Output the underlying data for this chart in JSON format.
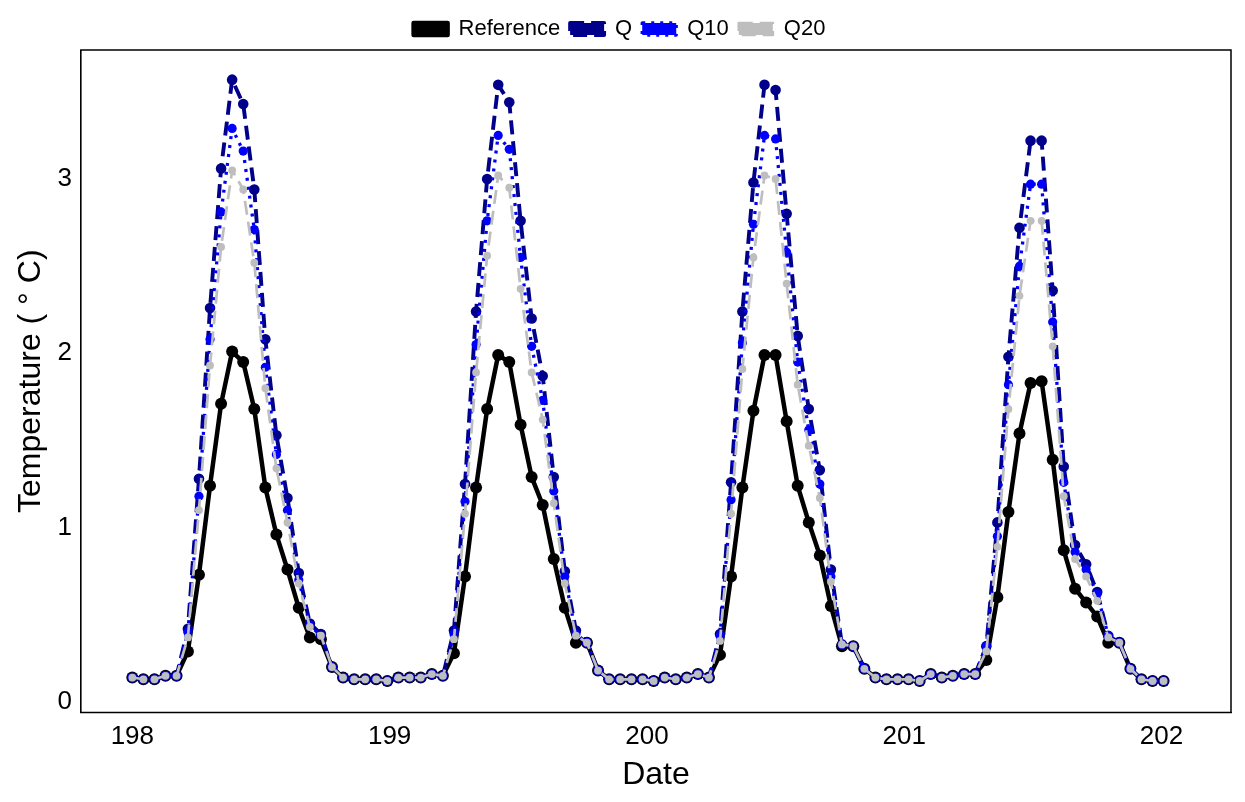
{
  "chart_data": {
    "type": "line",
    "xlabel": "Date",
    "ylabel": "Temperature ( ° C)",
    "legend": "top",
    "grid": false,
    "marker": "circle",
    "xlim": [
      197.8,
      202.27
    ],
    "ylim": [
      -0.06,
      3.74
    ],
    "xticks": [
      198,
      199,
      200,
      201,
      202
    ],
    "yticks": [
      0,
      1,
      2,
      3
    ],
    "x": [
      198.0,
      198.043,
      198.086,
      198.129,
      198.172,
      198.216,
      198.259,
      198.302,
      198.345,
      198.388,
      198.431,
      198.474,
      198.517,
      198.56,
      198.603,
      198.647,
      198.69,
      198.733,
      198.776,
      198.819,
      198.862,
      198.905,
      198.948,
      198.991,
      199.034,
      199.078,
      199.121,
      199.164,
      199.207,
      199.25,
      199.293,
      199.336,
      199.379,
      199.422,
      199.465,
      199.509,
      199.552,
      199.595,
      199.638,
      199.681,
      199.724,
      199.767,
      199.81,
      199.853,
      199.896,
      199.94,
      199.983,
      200.026,
      200.069,
      200.112,
      200.155,
      200.198,
      200.241,
      200.284,
      200.327,
      200.371,
      200.414,
      200.457,
      200.5,
      200.543,
      200.586,
      200.629,
      200.672,
      200.715,
      200.758,
      200.802,
      200.845,
      200.888,
      200.931,
      200.974,
      201.017,
      201.06,
      201.103,
      201.146,
      201.189,
      201.233,
      201.276,
      201.319,
      201.362,
      201.405,
      201.448,
      201.491,
      201.534,
      201.577,
      201.62,
      201.664,
      201.707,
      201.75,
      201.793,
      201.836,
      201.879,
      201.922,
      201.965,
      202.008
    ],
    "series": [
      {
        "name": "Reference",
        "color": "#000000",
        "line_style": "solid",
        "values": [
          0.14,
          0.13,
          0.13,
          0.15,
          0.15,
          0.29,
          0.73,
          1.24,
          1.71,
          2.01,
          1.95,
          1.68,
          1.23,
          0.96,
          0.76,
          0.54,
          0.37,
          0.36,
          0.2,
          0.14,
          0.13,
          0.13,
          0.13,
          0.12,
          0.14,
          0.14,
          0.14,
          0.16,
          0.15,
          0.28,
          0.72,
          1.23,
          1.68,
          1.99,
          1.95,
          1.59,
          1.29,
          1.13,
          0.82,
          0.54,
          0.34,
          0.34,
          0.18,
          0.13,
          0.13,
          0.13,
          0.13,
          0.12,
          0.14,
          0.13,
          0.14,
          0.16,
          0.14,
          0.27,
          0.72,
          1.23,
          1.67,
          1.99,
          1.99,
          1.61,
          1.24,
          1.03,
          0.84,
          0.55,
          0.32,
          0.32,
          0.19,
          0.14,
          0.13,
          0.13,
          0.13,
          0.12,
          0.16,
          0.14,
          0.15,
          0.16,
          0.16,
          0.24,
          0.6,
          1.09,
          1.54,
          1.83,
          1.84,
          1.39,
          0.87,
          0.65,
          0.57,
          0.49,
          0.34,
          0.34,
          0.19,
          0.13,
          0.12,
          0.12
        ]
      },
      {
        "name": "Q",
        "color": "#00008b",
        "line_style": "dashed",
        "values": [
          0.14,
          0.13,
          0.13,
          0.15,
          0.15,
          0.42,
          1.28,
          2.26,
          3.06,
          3.57,
          3.43,
          2.94,
          2.08,
          1.53,
          1.17,
          0.74,
          0.45,
          0.39,
          0.2,
          0.14,
          0.13,
          0.13,
          0.13,
          0.12,
          0.14,
          0.14,
          0.14,
          0.16,
          0.15,
          0.41,
          1.25,
          2.24,
          3.0,
          3.54,
          3.44,
          2.76,
          2.2,
          1.87,
          1.29,
          0.75,
          0.41,
          0.34,
          0.18,
          0.13,
          0.13,
          0.13,
          0.13,
          0.12,
          0.14,
          0.13,
          0.14,
          0.16,
          0.14,
          0.39,
          1.26,
          2.24,
          2.98,
          3.54,
          3.51,
          2.8,
          2.1,
          1.68,
          1.33,
          0.76,
          0.33,
          0.32,
          0.19,
          0.14,
          0.13,
          0.13,
          0.13,
          0.12,
          0.16,
          0.14,
          0.15,
          0.16,
          0.16,
          0.32,
          1.03,
          1.98,
          2.72,
          3.22,
          3.22,
          2.36,
          1.35,
          0.9,
          0.79,
          0.63,
          0.38,
          0.34,
          0.19,
          0.13,
          0.12,
          0.12
        ]
      },
      {
        "name": "Q10",
        "color": "#0000ff",
        "line_style": "dotted",
        "values": [
          0.14,
          0.13,
          0.13,
          0.15,
          0.15,
          0.4,
          1.18,
          2.08,
          2.81,
          3.29,
          3.16,
          2.71,
          1.92,
          1.42,
          1.1,
          0.7,
          0.44,
          0.38,
          0.2,
          0.14,
          0.13,
          0.13,
          0.13,
          0.12,
          0.14,
          0.14,
          0.14,
          0.16,
          0.15,
          0.39,
          1.15,
          2.05,
          2.76,
          3.25,
          3.17,
          2.55,
          2.04,
          1.73,
          1.21,
          0.72,
          0.39,
          0.34,
          0.18,
          0.13,
          0.13,
          0.13,
          0.13,
          0.12,
          0.14,
          0.13,
          0.14,
          0.16,
          0.14,
          0.38,
          1.16,
          2.06,
          2.74,
          3.25,
          3.23,
          2.58,
          1.95,
          1.56,
          1.25,
          0.72,
          0.33,
          0.32,
          0.19,
          0.14,
          0.13,
          0.13,
          0.13,
          0.12,
          0.16,
          0.14,
          0.15,
          0.16,
          0.16,
          0.32,
          0.95,
          1.82,
          2.5,
          2.97,
          2.97,
          2.18,
          1.26,
          0.86,
          0.76,
          0.62,
          0.38,
          0.34,
          0.19,
          0.13,
          0.12,
          0.12
        ]
      },
      {
        "name": "Q20",
        "color": "#bebebe",
        "line_style": "dashed",
        "values": [
          0.14,
          0.13,
          0.13,
          0.15,
          0.15,
          0.37,
          1.1,
          1.93,
          2.61,
          3.05,
          2.94,
          2.52,
          1.8,
          1.34,
          1.03,
          0.68,
          0.43,
          0.38,
          0.2,
          0.14,
          0.13,
          0.13,
          0.13,
          0.12,
          0.14,
          0.14,
          0.14,
          0.16,
          0.15,
          0.36,
          1.08,
          1.89,
          2.56,
          3.02,
          2.95,
          2.37,
          1.89,
          1.62,
          1.14,
          0.68,
          0.38,
          0.34,
          0.18,
          0.13,
          0.13,
          0.13,
          0.13,
          0.12,
          0.14,
          0.13,
          0.14,
          0.16,
          0.14,
          0.35,
          1.08,
          1.91,
          2.55,
          3.02,
          3.0,
          2.4,
          1.82,
          1.47,
          1.17,
          0.69,
          0.33,
          0.32,
          0.19,
          0.14,
          0.13,
          0.13,
          0.13,
          0.12,
          0.16,
          0.14,
          0.15,
          0.16,
          0.16,
          0.29,
          0.89,
          1.68,
          2.33,
          2.76,
          2.76,
          2.04,
          1.18,
          0.82,
          0.72,
          0.58,
          0.37,
          0.34,
          0.19,
          0.13,
          0.12,
          0.12
        ]
      }
    ]
  }
}
